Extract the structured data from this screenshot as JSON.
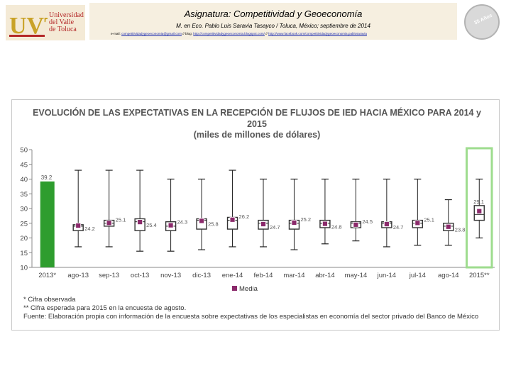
{
  "header": {
    "logo_text": "UVT",
    "university_lines": [
      "Universidad",
      "del Valle",
      "de Toluca"
    ],
    "title": "Asignatura: Competitividad y Geoeconomía",
    "subtitle": "M. en Eco. Pablo Luis Saravia Tasayco / Toluca, México; septiembre de 2014",
    "email_label": "e-mail:",
    "email": "competitividadygeoeconomia@gmail.com",
    "sep1": "// blog:",
    "blog": "http://competitividadygeoeconomia.blogspot.com/",
    "sep2": "//",
    "facebook": "http://www.facebook.com/competitividadygeoeconomia.pablosaravia",
    "badge_text": "35 Años"
  },
  "chart_data": {
    "type": "box",
    "title": "EVOLUCIÓN DE LAS EXPECTATIVAS EN LA RECEPCIÓN DE FLUJOS DE IED HACIA MÉXICO PARA 2014 y 2015",
    "unit_label": "(miles de millones de dólares)",
    "categories": [
      "2013*",
      "ago-13",
      "sep-13",
      "oct-13",
      "nov-13",
      "dic-13",
      "ene-14",
      "feb-14",
      "mar-14",
      "abr-14",
      "may-14",
      "jun-14",
      "jul-14",
      "ago-14",
      "2015**"
    ],
    "observed": {
      "category": "2013*",
      "value": 39.2
    },
    "boxes": [
      {
        "min": 17,
        "q1": 22.5,
        "q3": 24.5,
        "max": 43,
        "median": 24,
        "mean": 24.2
      },
      {
        "min": 17,
        "q1": 24,
        "q3": 26,
        "max": 43,
        "median": 25,
        "mean": 25.1
      },
      {
        "min": 15.5,
        "q1": 22.5,
        "q3": 26.5,
        "max": 43,
        "median": 25.5,
        "mean": 25.4
      },
      {
        "min": 15.5,
        "q1": 22.5,
        "q3": 25.5,
        "max": 40,
        "median": 24,
        "mean": 24.3
      },
      {
        "min": 16,
        "q1": 23,
        "q3": 26.5,
        "max": 40,
        "median": 26,
        "mean": 25.8
      },
      {
        "min": 17,
        "q1": 23,
        "q3": 27,
        "max": 43,
        "median": 26,
        "mean": 26.2
      },
      {
        "min": 17,
        "q1": 23,
        "q3": 26,
        "max": 40,
        "median": 25,
        "mean": 24.7
      },
      {
        "min": 16,
        "q1": 23,
        "q3": 26,
        "max": 40,
        "median": 25,
        "mean": 25.2
      },
      {
        "min": 18,
        "q1": 23.5,
        "q3": 26,
        "max": 40,
        "median": 25,
        "mean": 24.8
      },
      {
        "min": 19,
        "q1": 23.5,
        "q3": 25.5,
        "max": 40,
        "median": 25,
        "mean": 24.5
      },
      {
        "min": 17,
        "q1": 23.5,
        "q3": 25.5,
        "max": 40,
        "median": 25,
        "mean": 24.7
      },
      {
        "min": 17.5,
        "q1": 23.5,
        "q3": 26,
        "max": 40,
        "median": 25,
        "mean": 25.1
      },
      {
        "min": 17.5,
        "q1": 22.5,
        "q3": 25,
        "max": 33,
        "median": 24,
        "mean": 23.8
      },
      {
        "min": 20,
        "q1": 26,
        "q3": 31,
        "max": 40,
        "median": 28,
        "mean": 29.1
      }
    ],
    "value_labels": [
      "39.2",
      "24.2",
      "25.1",
      "25.4",
      "24.3",
      "25.8",
      "26.2",
      "24.7",
      "25.2",
      "24.8",
      "24.5",
      "24.7",
      "25.1",
      "23.8",
      "29.1"
    ],
    "highlight": "2015**",
    "ylim": [
      10,
      50
    ],
    "yticks": [
      10,
      15,
      20,
      25,
      30,
      35,
      40,
      45,
      50
    ],
    "legend": "Media",
    "colors": {
      "observed_bar": "#2e9d2e",
      "mean_marker": "#8b2a6b",
      "highlight": "#9edc8e",
      "box": "#333333"
    }
  },
  "notes": [
    "* Cifra observada",
    "** Cifra esperada para 2015 en la encuesta de agosto.",
    "Fuente: Elaboración propia con información de la encuesta sobre expectativas de los especialistas en economía del sector privado del Banco de México"
  ]
}
